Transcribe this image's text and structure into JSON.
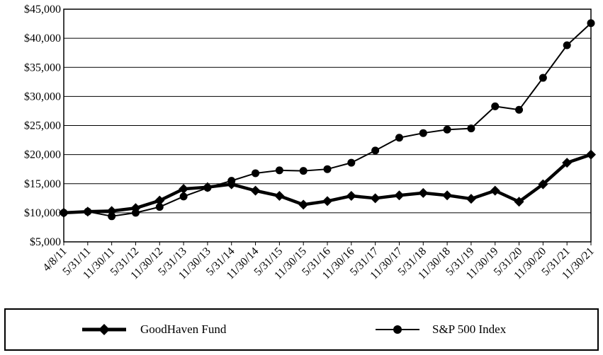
{
  "chart_data": {
    "type": "line",
    "title": "",
    "xlabel": "",
    "ylabel": "",
    "categories": [
      "4/8/11",
      "5/31/11",
      "11/30/11",
      "5/31/12",
      "11/30/12",
      "5/31/13",
      "11/30/13",
      "5/31/14",
      "11/30/14",
      "5/31/15",
      "11/30/15",
      "5/31/16",
      "11/30/16",
      "5/31/17",
      "11/30/17",
      "5/31/18",
      "11/30/18",
      "5/31/19",
      "11/30/19",
      "5/31/20",
      "11/30/20",
      "5/31/21",
      "11/30/21"
    ],
    "ylim": [
      5000,
      45000
    ],
    "yticks": [
      "$5,000",
      "$10,000",
      "$15,000",
      "$20,000",
      "$25,000",
      "$30,000",
      "$35,000",
      "$40,000",
      "$45,000"
    ],
    "ytick_values": [
      5000,
      10000,
      15000,
      20000,
      25000,
      30000,
      35000,
      40000,
      45000
    ],
    "grid": "horizontal",
    "series": [
      {
        "name": "GoodHaven Fund",
        "marker": "diamond",
        "color": "#000000",
        "values": [
          10000,
          10200,
          10300,
          10800,
          12100,
          14100,
          14400,
          14900,
          13800,
          12900,
          11400,
          12000,
          12900,
          12500,
          13000,
          13400,
          13000,
          12400,
          13800,
          11900,
          14900,
          18600,
          20000
        ]
      },
      {
        "name": "S&P 500 Index",
        "marker": "circle",
        "color": "#000000",
        "values": [
          10000,
          10200,
          9400,
          10000,
          11000,
          12800,
          14300,
          15500,
          16800,
          17300,
          17200,
          17500,
          18600,
          20700,
          22900,
          23700,
          24300,
          24500,
          28300,
          27700,
          33200,
          38800,
          42600
        ]
      }
    ],
    "legend_position": "bottom"
  }
}
